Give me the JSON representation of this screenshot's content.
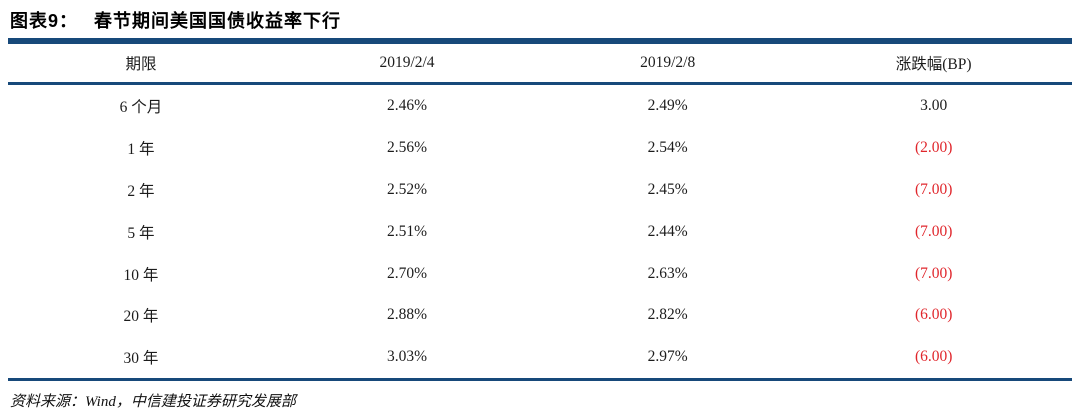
{
  "header": {
    "figure_label": "图表9：",
    "figure_title": "春节期间美国国债收益率下行"
  },
  "chart_data": {
    "type": "table",
    "title": "春节期间美国国债收益率下行",
    "columns": [
      "期限",
      "2019/2/4",
      "2019/2/8",
      "涨跌幅(BP)"
    ],
    "rows": [
      [
        "6 个月",
        "2.46%",
        "2.49%",
        "3.00"
      ],
      [
        "1 年",
        "2.56%",
        "2.54%",
        "(2.00)"
      ],
      [
        "2 年",
        "2.52%",
        "2.45%",
        "(7.00)"
      ],
      [
        "5 年",
        "2.51%",
        "2.44%",
        "(7.00)"
      ],
      [
        "10 年",
        "2.70%",
        "2.63%",
        "(7.00)"
      ],
      [
        "20 年",
        "2.88%",
        "2.82%",
        "(6.00)"
      ],
      [
        "30 年",
        "3.03%",
        "2.97%",
        "(6.00)"
      ]
    ],
    "change_bp_values": [
      3.0,
      -2.0,
      -7.0,
      -7.0,
      -7.0,
      -6.0,
      -6.0
    ],
    "notes": "负值以红色括号表示"
  },
  "footer": {
    "source_text": "资料来源：Wind，中信建投证券研究发展部"
  },
  "colors": {
    "accent": "#17497a",
    "negative": "#e0262c"
  }
}
